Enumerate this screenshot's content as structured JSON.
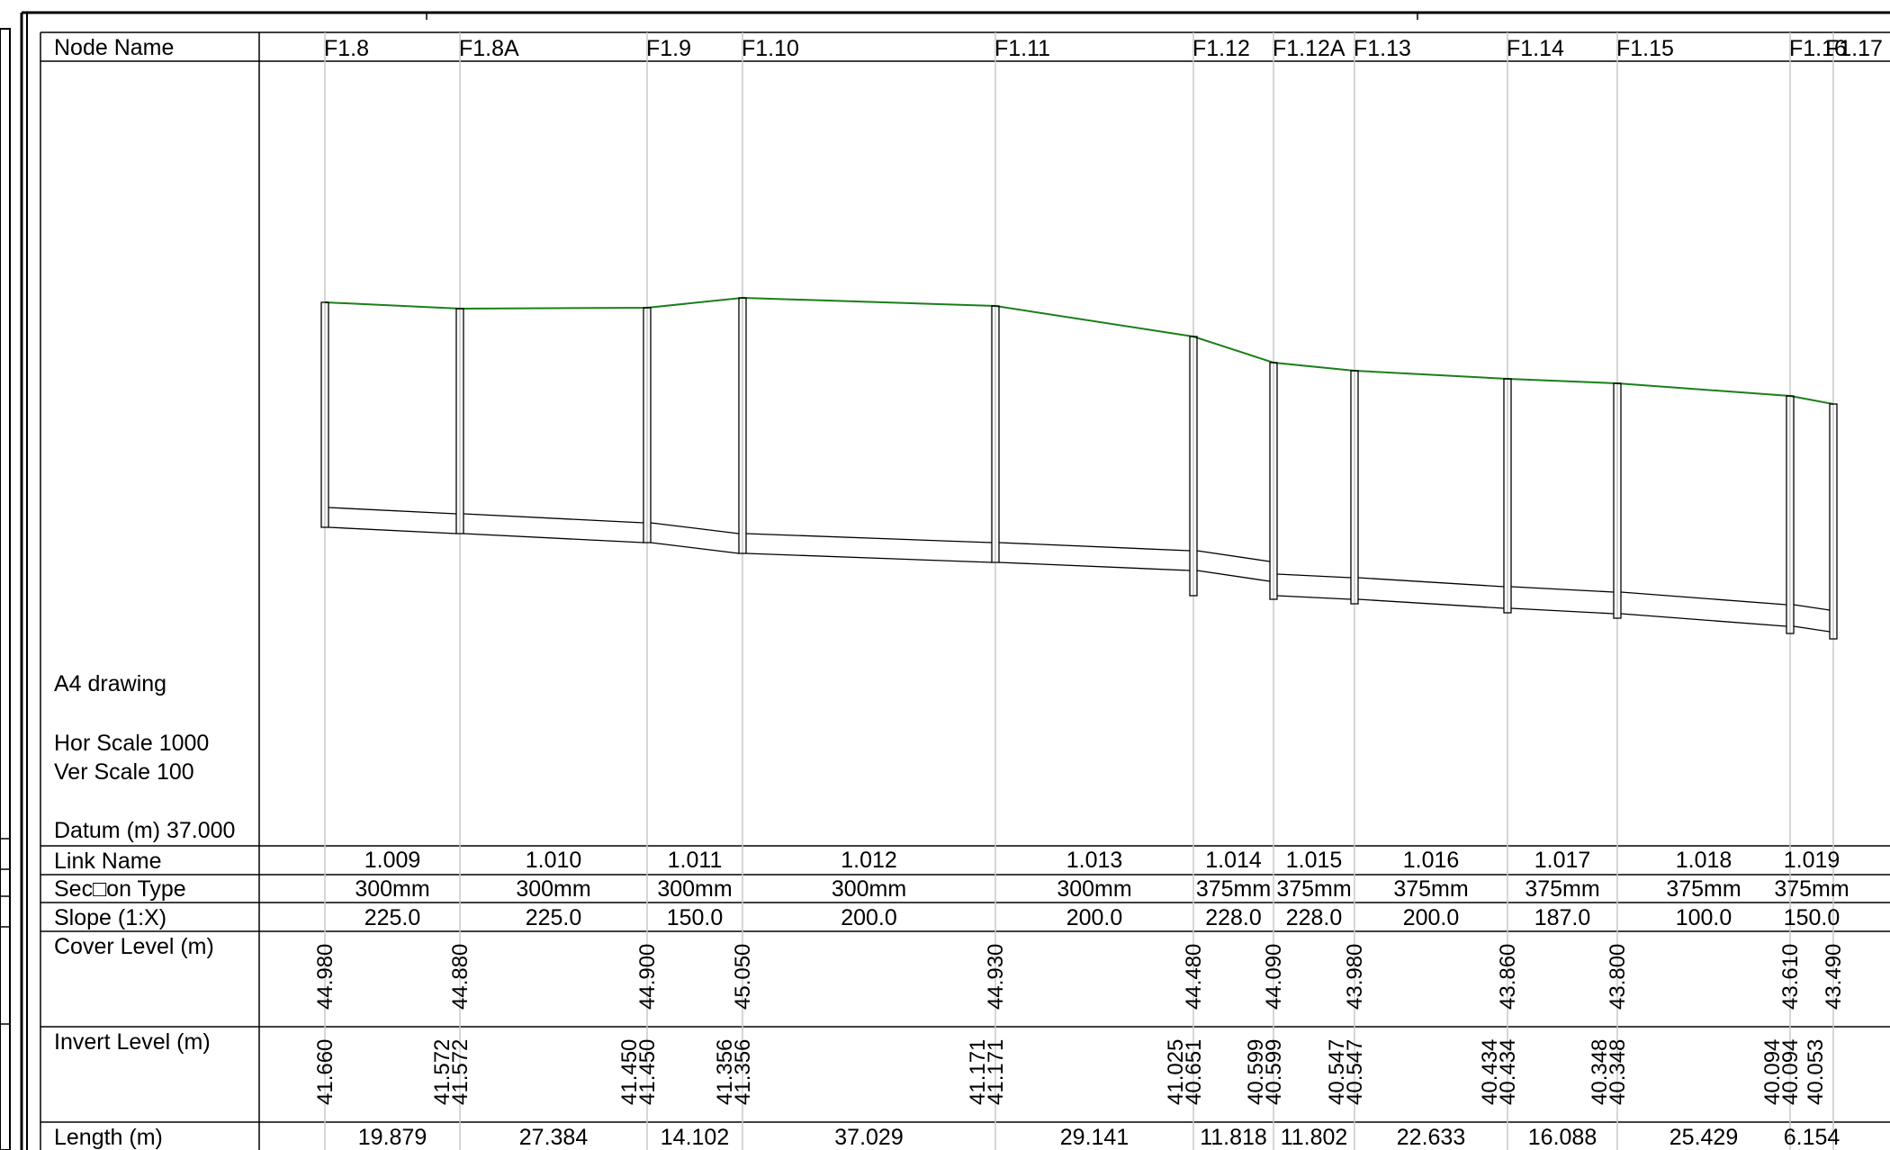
{
  "header": {
    "node_name_label": "Node Name",
    "link_name_label": "Link Name",
    "section_type_label": "Sec□on Type",
    "slope_label": "Slope (1:X)",
    "cover_level_label": "Cover Level (m)",
    "invert_level_label": "Invert Level (m)",
    "length_label": "Length (m)"
  },
  "drawing_info": {
    "sheet": "A4 drawing",
    "hor_scale": "Hor Scale 1000",
    "ver_scale": "Ver Scale 100",
    "datum": "Datum (m) 37.000"
  },
  "nodes": [
    {
      "name": "F1.8",
      "cover": "44.980"
    },
    {
      "name": "F1.8A",
      "cover": "44.880"
    },
    {
      "name": "F1.9",
      "cover": "44.900"
    },
    {
      "name": "F1.10",
      "cover": "45.050"
    },
    {
      "name": "F1.11",
      "cover": "44.930"
    },
    {
      "name": "F1.12",
      "cover": "44.480"
    },
    {
      "name": "F1.12A",
      "cover": "44.090"
    },
    {
      "name": "F1.13",
      "cover": "43.980"
    },
    {
      "name": "F1.14",
      "cover": "43.860"
    },
    {
      "name": "F1.15",
      "cover": "43.800"
    },
    {
      "name": "F1.16",
      "cover": "43.610"
    },
    {
      "name": "F1.17",
      "cover": "43.490"
    }
  ],
  "links": [
    {
      "name": "1.009",
      "section": "300mm",
      "slope": "225.0",
      "length": "19.879",
      "us_invert": "41.660",
      "ds_invert": "41.572"
    },
    {
      "name": "1.010",
      "section": "300mm",
      "slope": "225.0",
      "length": "27.384",
      "us_invert": "41.572",
      "ds_invert": "41.450"
    },
    {
      "name": "1.011",
      "section": "300mm",
      "slope": "150.0",
      "length": "14.102",
      "us_invert": "41.450",
      "ds_invert": "41.356"
    },
    {
      "name": "1.012",
      "section": "300mm",
      "slope": "200.0",
      "length": "37.029",
      "us_invert": "41.356",
      "ds_invert": "41.171"
    },
    {
      "name": "1.013",
      "section": "300mm",
      "slope": "200.0",
      "length": "29.141",
      "us_invert": "41.171",
      "ds_invert": "41.025"
    },
    {
      "name": "1.014",
      "section": "375mm",
      "slope": "228.0",
      "length": "11.818",
      "us_invert": "40.651",
      "ds_invert": "40.599"
    },
    {
      "name": "1.015",
      "section": "375mm",
      "slope": "228.0",
      "length": "11.802",
      "us_invert": "40.599",
      "ds_invert": "40.547"
    },
    {
      "name": "1.016",
      "section": "375mm",
      "slope": "200.0",
      "length": "22.633",
      "us_invert": "40.547",
      "ds_invert": "40.434"
    },
    {
      "name": "1.017",
      "section": "375mm",
      "slope": "187.0",
      "length": "16.088",
      "us_invert": "40.434",
      "ds_invert": "40.348"
    },
    {
      "name": "1.018",
      "section": "375mm",
      "slope": "100.0",
      "length": "25.429",
      "us_invert": "40.348",
      "ds_invert": "40.094"
    },
    {
      "name": "1.019",
      "section": "375mm",
      "slope": "150.0",
      "length": "6.154",
      "us_invert": "40.094",
      "ds_invert": "40.053"
    }
  ],
  "colors": {
    "ground_line": "#1a7f1a",
    "grid_line": "#c8c8c8",
    "ink": "#000000"
  }
}
